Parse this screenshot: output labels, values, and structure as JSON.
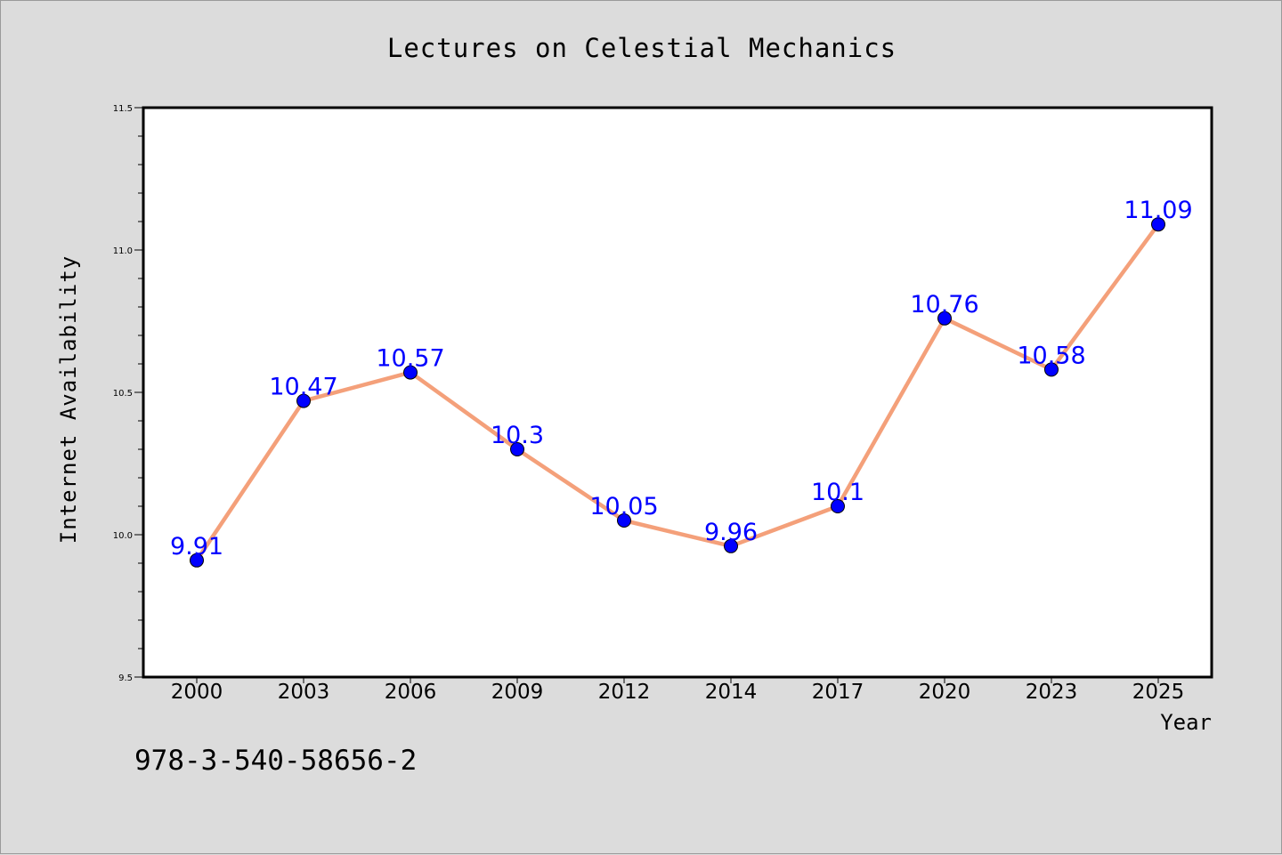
{
  "chart_data": {
    "type": "line",
    "title": "Lectures on Celestial Mechanics",
    "xlabel": "Year",
    "ylabel": "Internet Availability",
    "categories": [
      "2000",
      "2003",
      "2006",
      "2009",
      "2012",
      "2014",
      "2017",
      "2020",
      "2023",
      "2025"
    ],
    "values": [
      9.91,
      10.47,
      10.57,
      10.3,
      10.05,
      9.96,
      10.1,
      10.76,
      10.58,
      11.09
    ],
    "data_labels": [
      "9.91",
      "10.47",
      "10.57",
      "10.3",
      "10.05",
      "9.96",
      "10.1",
      "10.76",
      "10.58",
      "11.09"
    ],
    "ylim": [
      9.5,
      11.5
    ],
    "yticks": [
      "9.5",
      "10.0",
      "10.5",
      "11.0",
      "11.5"
    ],
    "grid": false,
    "line_color": "#f4a07a",
    "marker_color": "#0000ff",
    "label_color": "#0000ff"
  },
  "footer_text": "978-3-540-58656-2"
}
